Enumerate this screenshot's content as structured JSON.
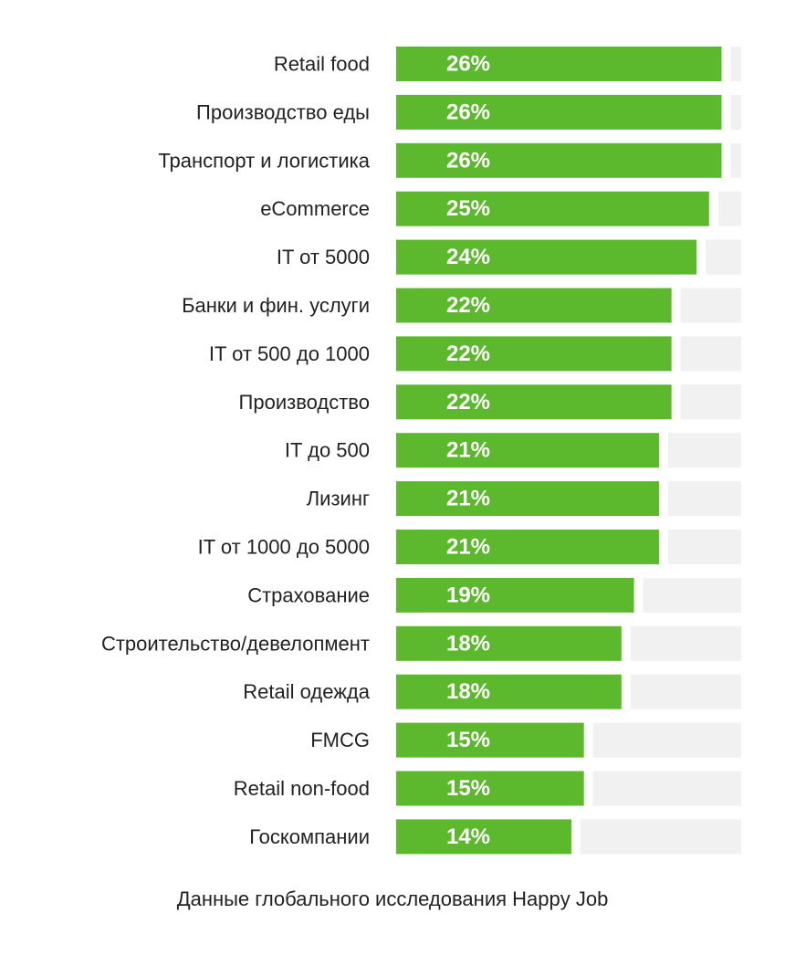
{
  "chart_data": {
    "type": "bar",
    "orientation": "horizontal",
    "categories": [
      "Retail food",
      "Производство еды",
      "Транспорт и логистика",
      "eCommerce",
      "IT от 5000",
      "Банки и фин. услуги",
      "IT от 500 до 1000",
      "Производство",
      "IT до 500",
      "Лизинг",
      "IT от 1000 до 5000",
      "Страхование",
      "Строительство/девелопмент",
      "Retail одежда",
      "FMCG",
      "Retail non-food",
      "Госкомпании"
    ],
    "values": [
      26,
      26,
      26,
      25,
      24,
      22,
      22,
      22,
      21,
      21,
      21,
      19,
      18,
      18,
      15,
      15,
      14
    ],
    "value_labels": [
      "26%",
      "26%",
      "26%",
      "25%",
      "24%",
      "22%",
      "22%",
      "22%",
      "21%",
      "21%",
      "21%",
      "19%",
      "18%",
      "18%",
      "15%",
      "15%",
      "14%"
    ],
    "unit": "%",
    "xlim": [
      0,
      26.4
    ],
    "grid": false,
    "legend": "none",
    "colors": {
      "bar": "#5cb82c",
      "track": "#f1f1f1",
      "label_text": "#222222",
      "value_text": "#ffffff"
    }
  },
  "footer": {
    "caption": "Данные глобального исследования Happy Job"
  }
}
